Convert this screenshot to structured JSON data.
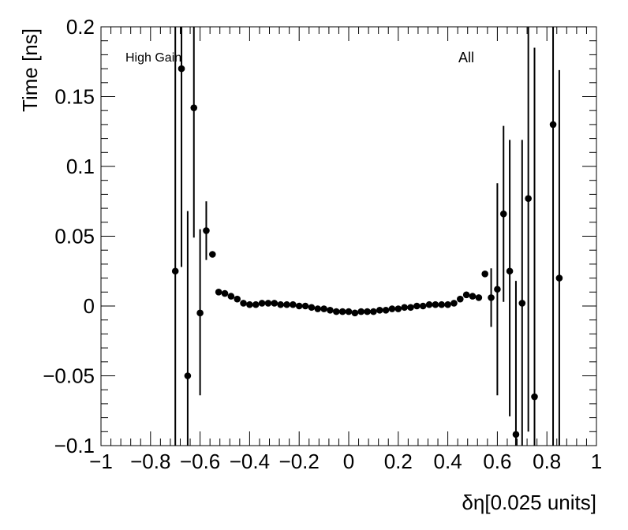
{
  "chart_data": {
    "type": "scatter",
    "xlabel": "δη[0.025 units]",
    "ylabel": "Time [ns]",
    "xlim": [
      -1,
      1
    ],
    "ylim": [
      -0.1,
      0.2
    ],
    "x_ticks": [
      {
        "v": -1,
        "label": "−1"
      },
      {
        "v": -0.8,
        "label": "−0.8"
      },
      {
        "v": -0.6,
        "label": "−0.6"
      },
      {
        "v": -0.4,
        "label": "−0.4"
      },
      {
        "v": -0.2,
        "label": "−0.2"
      },
      {
        "v": 0,
        "label": "0"
      },
      {
        "v": 0.2,
        "label": "0.2"
      },
      {
        "v": 0.4,
        "label": "0.4"
      },
      {
        "v": 0.6,
        "label": "0.6"
      },
      {
        "v": 0.8,
        "label": "0.8"
      },
      {
        "v": 1,
        "label": "1"
      }
    ],
    "y_ticks": [
      {
        "v": -0.1,
        "label": "−0.1"
      },
      {
        "v": -0.05,
        "label": "−0.05"
      },
      {
        "v": 0,
        "label": "0"
      },
      {
        "v": 0.05,
        "label": "0.05"
      },
      {
        "v": 0.1,
        "label": "0.1"
      },
      {
        "v": 0.15,
        "label": "0.15"
      },
      {
        "v": 0.2,
        "label": "0.2"
      }
    ],
    "annotations": [
      "High Gain",
      "All"
    ],
    "grid": false,
    "marker_color": "#000000",
    "points": [
      {
        "x": -0.7,
        "y": 0.025,
        "lo": -0.1,
        "hi": 0.2
      },
      {
        "x": -0.675,
        "y": 0.17,
        "lo": 0.028,
        "hi": 0.2
      },
      {
        "x": -0.65,
        "y": -0.05,
        "lo": -0.1,
        "hi": 0.068
      },
      {
        "x": -0.625,
        "y": 0.142,
        "lo": 0.049,
        "hi": 0.2
      },
      {
        "x": -0.6,
        "y": -0.005,
        "lo": -0.064,
        "hi": 0.055
      },
      {
        "x": -0.575,
        "y": 0.054,
        "lo": 0.033,
        "hi": 0.075
      },
      {
        "x": -0.55,
        "y": 0.037,
        "lo": 0.037,
        "hi": 0.037
      },
      {
        "x": -0.525,
        "y": 0.01
      },
      {
        "x": -0.5,
        "y": 0.009
      },
      {
        "x": -0.475,
        "y": 0.007
      },
      {
        "x": -0.45,
        "y": 0.005
      },
      {
        "x": -0.425,
        "y": 0.002
      },
      {
        "x": -0.4,
        "y": 0.001
      },
      {
        "x": -0.375,
        "y": 0.001
      },
      {
        "x": -0.35,
        "y": 0.002
      },
      {
        "x": -0.325,
        "y": 0.002
      },
      {
        "x": -0.3,
        "y": 0.002
      },
      {
        "x": -0.275,
        "y": 0.001
      },
      {
        "x": -0.25,
        "y": 0.001
      },
      {
        "x": -0.225,
        "y": 0.001
      },
      {
        "x": -0.2,
        "y": 0.0
      },
      {
        "x": -0.175,
        "y": 0.0
      },
      {
        "x": -0.15,
        "y": -0.001
      },
      {
        "x": -0.125,
        "y": -0.002
      },
      {
        "x": -0.1,
        "y": -0.002
      },
      {
        "x": -0.075,
        "y": -0.003
      },
      {
        "x": -0.05,
        "y": -0.004
      },
      {
        "x": -0.025,
        "y": -0.004
      },
      {
        "x": 0.0,
        "y": -0.004
      },
      {
        "x": 0.025,
        "y": -0.005
      },
      {
        "x": 0.05,
        "y": -0.004
      },
      {
        "x": 0.075,
        "y": -0.004
      },
      {
        "x": 0.1,
        "y": -0.004
      },
      {
        "x": 0.125,
        "y": -0.003
      },
      {
        "x": 0.15,
        "y": -0.003
      },
      {
        "x": 0.175,
        "y": -0.002
      },
      {
        "x": 0.2,
        "y": -0.002
      },
      {
        "x": 0.225,
        "y": -0.001
      },
      {
        "x": 0.25,
        "y": -0.001
      },
      {
        "x": 0.275,
        "y": 0.0
      },
      {
        "x": 0.3,
        "y": 0.0
      },
      {
        "x": 0.325,
        "y": 0.001
      },
      {
        "x": 0.35,
        "y": 0.001
      },
      {
        "x": 0.375,
        "y": 0.001
      },
      {
        "x": 0.4,
        "y": 0.001
      },
      {
        "x": 0.425,
        "y": 0.002
      },
      {
        "x": 0.45,
        "y": 0.005
      },
      {
        "x": 0.475,
        "y": 0.008
      },
      {
        "x": 0.5,
        "y": 0.007
      },
      {
        "x": 0.525,
        "y": 0.006
      },
      {
        "x": 0.55,
        "y": 0.023
      },
      {
        "x": 0.575,
        "y": 0.006,
        "lo": -0.015,
        "hi": 0.027
      },
      {
        "x": 0.6,
        "y": 0.012,
        "lo": -0.064,
        "hi": 0.088
      },
      {
        "x": 0.625,
        "y": 0.066,
        "lo": 0.003,
        "hi": 0.129
      },
      {
        "x": 0.65,
        "y": 0.025,
        "lo": -0.079,
        "hi": 0.119
      },
      {
        "x": 0.675,
        "y": -0.092,
        "lo": -0.1,
        "hi": 0.018
      },
      {
        "x": 0.7,
        "y": 0.002,
        "lo": -0.1,
        "hi": 0.119
      },
      {
        "x": 0.725,
        "y": 0.077,
        "lo": -0.09,
        "hi": 0.2
      },
      {
        "x": 0.75,
        "y": -0.065,
        "lo": -0.1,
        "hi": 0.185
      },
      {
        "x": 0.825,
        "y": 0.13,
        "lo": -0.1,
        "hi": 0.2
      },
      {
        "x": 0.85,
        "y": 0.02,
        "lo": -0.1,
        "hi": 0.169
      }
    ]
  }
}
